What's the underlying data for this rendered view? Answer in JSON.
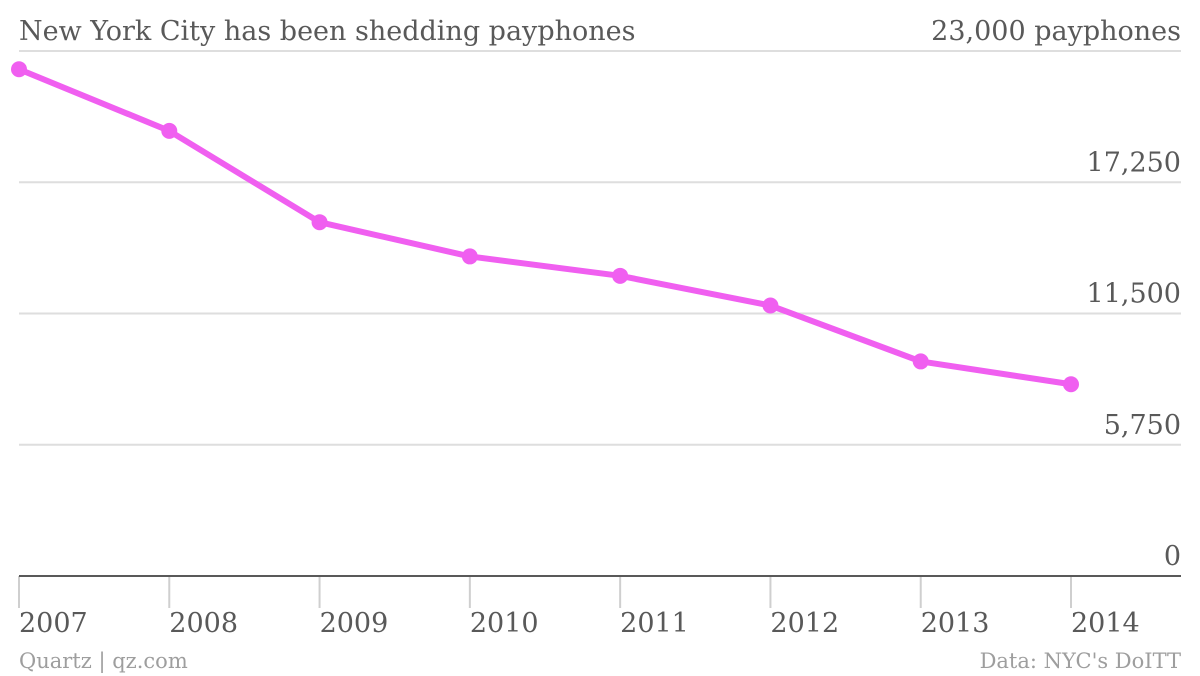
{
  "chart_data": {
    "type": "line",
    "title": "New York City has been shedding payphones",
    "x": [
      "2007",
      "2008",
      "2009",
      "2010",
      "2011",
      "2012",
      "2013",
      "2014"
    ],
    "series": [
      {
        "values": [
          22200,
          19500,
          15500,
          14000,
          13150,
          11850,
          9400,
          8400
        ]
      }
    ],
    "y_ticks": [
      0,
      5750,
      11500,
      17250,
      23000
    ],
    "y_tick_labels": [
      "0",
      "5,750",
      "11,500",
      "17,250",
      "23,000 payphones"
    ],
    "ylim": [
      0,
      23000
    ],
    "grid": true,
    "y_axis_side": "right",
    "line_color": "#f05ff0"
  },
  "footer": {
    "source_left": "Quartz | qz.com",
    "source_right": "Data: NYC's DoITT"
  }
}
